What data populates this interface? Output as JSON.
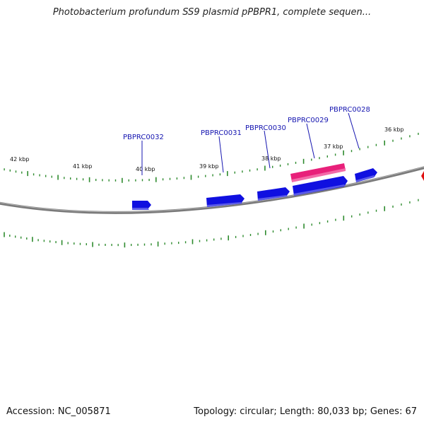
{
  "title": "Photobacterium profundum SS9 plasmid pPBPR1, complete sequen...",
  "footer": {
    "accession": "Accession: NC_005871",
    "summary": "Topology: circular; Length: 80,033 bp; Genes: 67"
  },
  "map": {
    "topology": "circular",
    "length_bp": 80033,
    "genes_total": 67,
    "backbone_color": "#808080",
    "tick_color": "#2e8b2e",
    "forward_gene_color": "#1010e0",
    "highlight_gene_color": "#e8207a",
    "scale_labels": [
      "42 kbp",
      "41 kbp",
      "40 kbp",
      "39 kbp",
      "38 kbp",
      "37 kbp",
      "36 kbp"
    ],
    "genes": [
      {
        "label": "PBPRC0032"
      },
      {
        "label": "PBPRC0031"
      },
      {
        "label": "PBPRC0030"
      },
      {
        "label": "PBPRC0029"
      },
      {
        "label": "PBPRC0028"
      }
    ]
  }
}
